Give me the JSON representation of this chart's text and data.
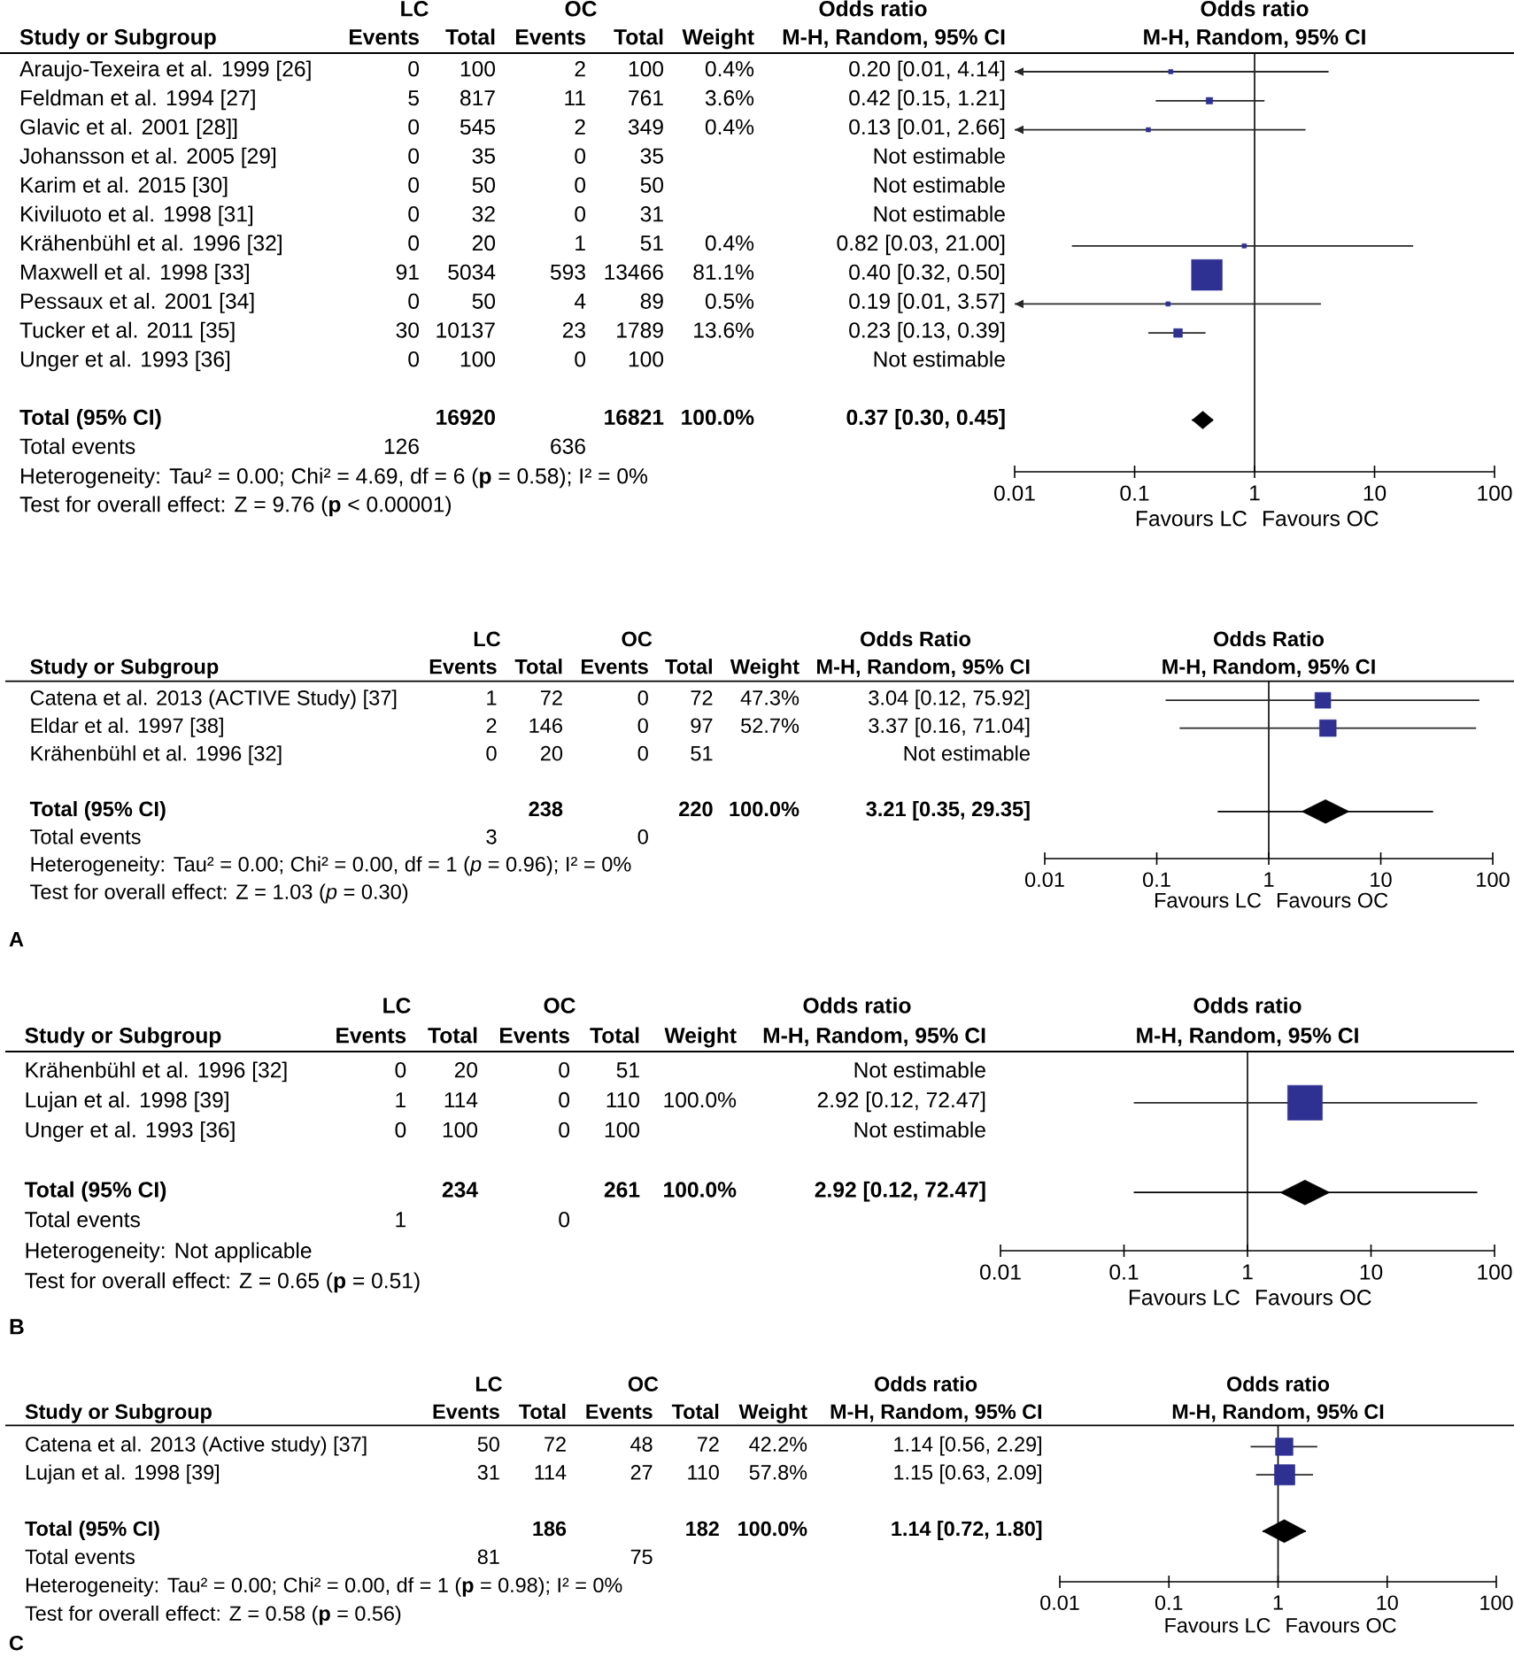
{
  "chart_data": [
    {
      "type": "other",
      "ylabel": "Study or Subgroup",
      "categories": [
        "Araujo-Texeira et al. 1999 [26]",
        "Feldman et al. 1994 [27]",
        "Glavic et al. 2001 [28]]",
        "Johansson et al. 2005 [29]",
        "Karim et al. 2015 [30]",
        "Kiviluoto et al. 1998 [31]",
        "Krähenbühl et al. 1996 [32]",
        "Maxwell et al. 1998 [33]",
        "Pessaux et al. 2001 [34]",
        "Tucker et al. 2011 [35]",
        "Unger et al. 1993 [36]",
        null,
        "Total (95% CI)",
        "Total events"
      ],
      "series": [
        {
          "name": "Events",
          "values": [
            0,
            5,
            0,
            0,
            0,
            0,
            0,
            91,
            0,
            30,
            0,
            null,
            null,
            126
          ],
          "value_labels": [
            "0",
            "5",
            "0",
            "0",
            "0",
            "0",
            "0",
            "91",
            "0",
            "30",
            "0",
            null,
            null,
            "126"
          ]
        },
        {
          "name": "Total",
          "values": [
            100,
            817,
            545,
            35,
            50,
            32,
            20,
            5034,
            50,
            10137,
            100,
            null,
            16920,
            null
          ],
          "value_labels": [
            "100",
            "817",
            "545",
            "35",
            "50",
            "32",
            "20",
            "5034",
            "50",
            "10137",
            "100",
            null,
            "16920",
            null
          ]
        },
        {
          "name": "Events",
          "values": [
            2,
            11,
            2,
            0,
            0,
            0,
            1,
            593,
            4,
            23,
            0,
            null,
            null,
            636
          ],
          "value_labels": [
            "2",
            "11",
            "2",
            "0",
            "0",
            "0",
            "1",
            "593",
            "4",
            "23",
            "0",
            null,
            null,
            "636"
          ]
        },
        {
          "name": "Total",
          "values": [
            100,
            761,
            349,
            35,
            50,
            31,
            51,
            13466,
            89,
            1789,
            100,
            null,
            16821,
            null
          ],
          "value_labels": [
            "100",
            "761",
            "349",
            "35",
            "50",
            "31",
            "51",
            "13466",
            "89",
            "1789",
            "100",
            null,
            "16821",
            null
          ]
        },
        {
          "name": "Weight",
          "values": [
            0.4,
            3.6,
            0.4,
            null,
            null,
            null,
            0.4,
            81.1,
            0.5,
            13.6,
            null,
            null,
            100.0,
            null
          ],
          "value_labels": [
            "0.4%",
            "3.6%",
            "0.4%",
            null,
            null,
            null,
            "0.4%",
            "81.1%",
            "0.5%",
            "13.6%",
            null,
            null,
            "100.0%",
            null
          ]
        },
        {
          "values": [
            0.2,
            0.42,
            0.13,
            null,
            null,
            null,
            0.82,
            0.4,
            0.19,
            0.23,
            null,
            null,
            0.37,
            null
          ],
          "value_labels": [
            "0.20 [0.01, 4.14]",
            "0.42 [0.15, 1.21]",
            "0.13 [0.01, 2.66]",
            "Not estimable",
            "Not estimable",
            "Not estimable",
            "0.82 [0.03, 21.00]",
            "0.40 [0.32, 0.50]",
            "0.19 [0.01, 3.57]",
            "0.23 [0.13, 0.39]",
            "Not estimable",
            null,
            "0.37 [0.30, 0.45]",
            null
          ]
        }
      ],
      "annotations": [
        "LC",
        "OC",
        "Odds ratio",
        "M-H, Random, 95% CI",
        "Heterogeneity: Tau² = 0.00; Chi² = 4.69, df = 6 (**p** = 0.58); I² = 0%",
        "Test for overall effect: Z = 9.76 (**p** < 0.00001)"
      ]
    },
    {
      "type": "scatter",
      "orientation": "horizontal",
      "title": "Odds ratio",
      "subtitle": "M-H, Random, 95% CI",
      "categories": [
        null,
        null,
        null,
        null,
        null,
        null,
        null,
        null,
        null,
        null,
        null,
        null,
        null,
        null
      ],
      "series": [
        {
          "type": "bubble",
          "marker": "square",
          "color": "#2e3192",
          "values": [
            0.2,
            0.42,
            0.13,
            null,
            null,
            null,
            0.82,
            0.4,
            0.19,
            0.23,
            null,
            null,
            null,
            null
          ],
          "errors": [
            [
              0.01,
              4.14
            ],
            [
              0.15,
              1.21
            ],
            [
              0.01,
              2.66
            ],
            null,
            null,
            null,
            [
              0.03,
              21.0
            ],
            null,
            [
              0.01,
              3.57
            ],
            [
              0.13,
              0.39
            ],
            null,
            null,
            null,
            null
          ],
          "sizes": [
            0.02,
            0.045,
            0.02,
            null,
            null,
            null,
            0.02,
            1,
            0.02,
            0.08,
            null,
            null,
            null,
            null
          ]
        },
        {
          "type": "scatter",
          "marker": "diamond",
          "color": "#000000",
          "values": [
            null,
            null,
            null,
            null,
            null,
            null,
            null,
            null,
            null,
            null,
            null,
            null,
            0.37,
            null
          ],
          "errors": [
            null,
            null,
            null,
            null,
            null,
            null,
            null,
            null,
            null,
            null,
            null,
            null,
            [
              0.3,
              0.45
            ],
            null
          ]
        }
      ],
      "annotations": [
        "Favours LC",
        "Favours OC"
      ],
      "ref_lines": [
        {
          "axis": "x",
          "value": 1
        }
      ],
      "log": "x",
      "xlim": [
        0.01,
        100
      ],
      "xticks": [
        0.01,
        0.1,
        1,
        10,
        100
      ]
    },
    {
      "type": "other",
      "ylabel": "Study or Subgroup",
      "categories": [
        "Catena et al. 2013 (ACTIVE Study) [37]",
        "Eldar et al. 1997 [38]",
        "Krähenbühl et al. 1996 [32]",
        null,
        "Total (95% CI)",
        "Total events"
      ],
      "series": [
        {
          "name": "Events",
          "values": [
            1,
            2,
            0,
            null,
            null,
            3
          ],
          "value_labels": [
            "1",
            "2",
            "0",
            null,
            null,
            "3"
          ]
        },
        {
          "name": "Total",
          "values": [
            72,
            146,
            20,
            null,
            238,
            null
          ],
          "value_labels": [
            "72",
            "146",
            "20",
            null,
            "238",
            null
          ]
        },
        {
          "name": "Events",
          "values": [
            0,
            0,
            0,
            null,
            null,
            0
          ],
          "value_labels": [
            "0",
            "0",
            "0",
            null,
            null,
            "0"
          ]
        },
        {
          "name": "Total",
          "values": [
            72,
            97,
            51,
            null,
            220,
            null
          ],
          "value_labels": [
            "72",
            "97",
            "51",
            null,
            "220",
            null
          ]
        },
        {
          "name": "Weight",
          "values": [
            47.3,
            52.7,
            null,
            null,
            100.0,
            null
          ],
          "value_labels": [
            "47.3%",
            "52.7%",
            null,
            null,
            "100.0%",
            null
          ]
        },
        {
          "values": [
            3.04,
            3.37,
            null,
            null,
            3.21,
            null
          ],
          "value_labels": [
            "3.04 [0.12, 75.92]",
            "3.37 [0.16, 71.04]",
            "Not estimable",
            null,
            "3.21 [0.35, 29.35]",
            null
          ]
        }
      ],
      "annotations": [
        "LC",
        "OC",
        "Odds Ratio",
        "M-H, Random, 95% CI",
        "Heterogeneity: Tau² = 0.00; Chi² = 0.00, df = 1 (*p* = 0.96); I² = 0%",
        "Test for overall effect: Z = 1.03 (*p* = 0.30)",
        "A"
      ]
    },
    {
      "type": "scatter",
      "orientation": "horizontal",
      "title": "Odds Ratio",
      "subtitle": "M-H, Random, 95% CI",
      "categories": [
        null,
        null,
        null,
        null,
        null,
        null
      ],
      "series": [
        {
          "type": "bubble",
          "marker": "square",
          "color": "#2e3192",
          "values": [
            3.04,
            3.37,
            null,
            null,
            null,
            null
          ],
          "errors": [
            [
              0.12,
              75.92
            ],
            [
              0.16,
              71.04
            ],
            null,
            null,
            null,
            null
          ],
          "sizes": [
            0.9,
            1,
            null,
            null,
            null,
            null
          ]
        },
        {
          "type": "scatter",
          "marker": "diamond",
          "color": "#000000",
          "values": [
            null,
            null,
            null,
            null,
            3.21,
            null
          ],
          "errors": [
            null,
            null,
            null,
            null,
            [
              0.35,
              29.35
            ],
            null
          ]
        }
      ],
      "annotations": [
        "Favours LC",
        "Favours OC"
      ],
      "ref_lines": [
        {
          "axis": "x",
          "value": 1
        }
      ],
      "log": "x",
      "xlim": [
        0.01,
        100
      ],
      "xticks": [
        0.01,
        0.1,
        1,
        10,
        100
      ]
    },
    {
      "type": "other",
      "ylabel": "Study or Subgroup",
      "categories": [
        "Krähenbühl et al. 1996 [32]",
        "Lujan et al. 1998 [39]",
        "Unger et al. 1993 [36]",
        null,
        "Total (95% CI)",
        "Total events"
      ],
      "series": [
        {
          "name": "Events",
          "values": [
            0,
            1,
            0,
            null,
            null,
            1
          ],
          "value_labels": [
            "0",
            "1",
            "0",
            null,
            null,
            "1"
          ]
        },
        {
          "name": "Total",
          "values": [
            20,
            114,
            100,
            null,
            234,
            null
          ],
          "value_labels": [
            "20",
            "114",
            "100",
            null,
            "234",
            null
          ]
        },
        {
          "name": "Events",
          "values": [
            0,
            0,
            0,
            null,
            null,
            0
          ],
          "value_labels": [
            "0",
            "0",
            "0",
            null,
            null,
            "0"
          ]
        },
        {
          "name": "Total",
          "values": [
            51,
            110,
            100,
            null,
            261,
            null
          ],
          "value_labels": [
            "51",
            "110",
            "100",
            null,
            "261",
            null
          ]
        },
        {
          "name": "Weight",
          "values": [
            null,
            100.0,
            null,
            null,
            100.0,
            null
          ],
          "value_labels": [
            null,
            "100.0%",
            null,
            null,
            "100.0%",
            null
          ]
        },
        {
          "values": [
            null,
            2.92,
            null,
            null,
            2.92,
            null
          ],
          "value_labels": [
            "Not estimable",
            "2.92 [0.12, 72.47]",
            "Not estimable",
            null,
            "2.92 [0.12, 72.47]",
            null
          ]
        }
      ],
      "annotations": [
        "LC",
        "OC",
        "Odds ratio",
        "M-H, Random, 95% CI",
        "Heterogeneity: Not applicable",
        "Test for overall effect: Z = 0.65 (**p** = 0.51)",
        "B"
      ]
    },
    {
      "type": "scatter",
      "orientation": "horizontal",
      "title": "Odds ratio",
      "subtitle": "M-H, Random, 95% CI",
      "categories": [
        null,
        null,
        null,
        null,
        null,
        null
      ],
      "series": [
        {
          "type": "bubble",
          "marker": "square",
          "color": "#2e3192",
          "values": [
            null,
            2.92,
            null,
            null,
            null,
            null
          ],
          "errors": [
            null,
            [
              0.12,
              72.47
            ],
            null,
            null,
            null,
            null
          ],
          "sizes": [
            null,
            1,
            null,
            null,
            null,
            null
          ]
        },
        {
          "type": "scatter",
          "marker": "diamond",
          "color": "#000000",
          "values": [
            null,
            null,
            null,
            null,
            2.92,
            null
          ],
          "errors": [
            null,
            null,
            null,
            null,
            [
              0.12,
              72.47
            ],
            null
          ]
        }
      ],
      "annotations": [
        "Favours LC",
        "Favours OC"
      ],
      "ref_lines": [
        {
          "axis": "x",
          "value": 1
        }
      ],
      "log": "x",
      "xlim": [
        0.01,
        100
      ],
      "xticks": [
        0.01,
        0.1,
        1,
        10,
        100
      ]
    },
    {
      "type": "other",
      "ylabel": "Study or Subgroup",
      "categories": [
        "Catena et al. 2013 (Active study) [37]",
        "Lujan et al. 1998 [39]",
        null,
        "Total (95% CI)",
        "Total events"
      ],
      "series": [
        {
          "name": "Events",
          "values": [
            50,
            31,
            null,
            null,
            81
          ],
          "value_labels": [
            "50",
            "31",
            null,
            null,
            "81"
          ]
        },
        {
          "name": "Total",
          "values": [
            72,
            114,
            null,
            186,
            null
          ],
          "value_labels": [
            "72",
            "114",
            null,
            "186",
            null
          ]
        },
        {
          "name": "Events",
          "values": [
            48,
            27,
            null,
            null,
            75
          ],
          "value_labels": [
            "48",
            "27",
            null,
            null,
            "75"
          ]
        },
        {
          "name": "Total",
          "values": [
            72,
            110,
            null,
            182,
            null
          ],
          "value_labels": [
            "72",
            "110",
            null,
            "182",
            null
          ]
        },
        {
          "name": "Weight",
          "values": [
            42.2,
            57.8,
            null,
            100.0,
            null
          ],
          "value_labels": [
            "42.2%",
            "57.8%",
            null,
            "100.0%",
            null
          ]
        },
        {
          "values": [
            1.14,
            1.15,
            null,
            1.14,
            null
          ],
          "value_labels": [
            "1.14 [0.56, 2.29]",
            "1.15 [0.63, 2.09]",
            null,
            "1.14 [0.72, 1.80]",
            null
          ]
        }
      ],
      "annotations": [
        "LC",
        "OC",
        "Odds ratio",
        "M-H, Random, 95% CI",
        "Heterogeneity: Tau² = 0.00; Chi² = 0.00, df = 1 (**p** = 0.98); I² = 0%",
        "Test for overall effect: Z = 0.58 (**p** = 0.56)",
        "C"
      ]
    },
    {
      "type": "scatter",
      "orientation": "horizontal",
      "title": "Odds ratio",
      "subtitle": "M-H, Random, 95% CI",
      "categories": [
        null,
        null,
        null,
        null,
        null
      ],
      "series": [
        {
          "type": "bubble",
          "marker": "square",
          "color": "#2e3192",
          "values": [
            1.14,
            1.15,
            null,
            null,
            null
          ],
          "errors": [
            [
              0.56,
              2.29
            ],
            [
              0.63,
              2.09
            ],
            null,
            null,
            null
          ],
          "sizes": [
            0.73,
            1,
            null,
            null,
            null
          ]
        },
        {
          "type": "scatter",
          "marker": "diamond",
          "color": "#000000",
          "values": [
            null,
            null,
            null,
            1.14,
            null
          ],
          "errors": [
            null,
            null,
            null,
            [
              0.72,
              1.8
            ],
            null
          ]
        }
      ],
      "annotations": [
        "Favours LC",
        "Favours OC"
      ],
      "ref_lines": [
        {
          "axis": "x",
          "value": 1
        }
      ],
      "log": "x",
      "xlim": [
        0.01,
        100
      ],
      "xticks": [
        0.01,
        0.1,
        1,
        10,
        100
      ]
    }
  ]
}
